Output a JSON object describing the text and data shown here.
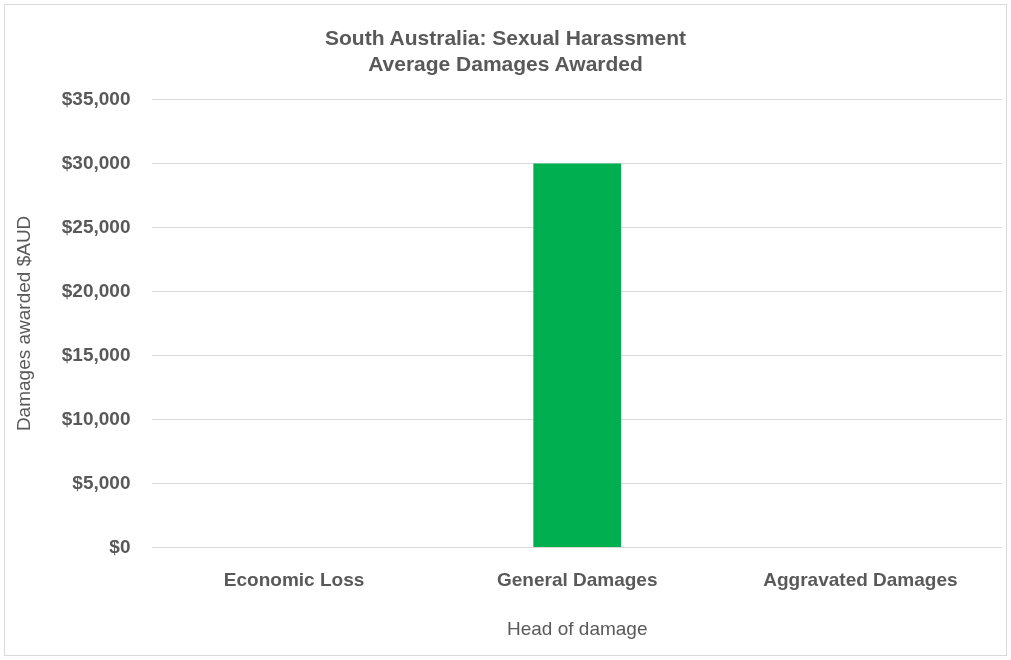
{
  "chart_data": {
    "type": "bar",
    "title": [
      "South Australia: Sexual Harassment",
      "Average Damages Awarded"
    ],
    "xlabel": "Head of damage",
    "ylabel": "Damages awarded $AUD",
    "categories": [
      "Economic Loss",
      "General Damages",
      "Aggravated Damages"
    ],
    "values": [
      0,
      30000,
      0
    ],
    "color": "#00b050",
    "ylim": [
      0,
      35000
    ],
    "yticks": [
      {
        "value": 0,
        "label": "$0"
      },
      {
        "value": 5000,
        "label": "$5,000"
      },
      {
        "value": 10000,
        "label": "$10,000"
      },
      {
        "value": 15000,
        "label": "$15,000"
      },
      {
        "value": 20000,
        "label": "$20,000"
      },
      {
        "value": 25000,
        "label": "$25,000"
      },
      {
        "value": 30000,
        "label": "$30,000"
      },
      {
        "value": 35000,
        "label": "$35,000"
      }
    ],
    "grid": "y",
    "legend": false
  }
}
